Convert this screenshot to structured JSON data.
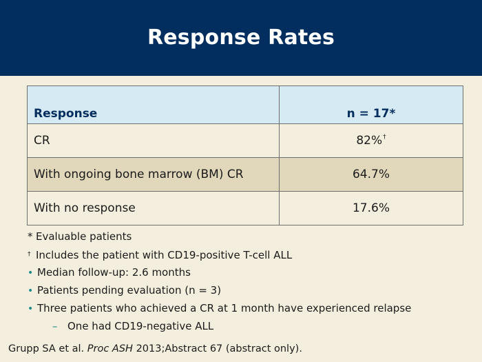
{
  "slide": {
    "title": "Response Rates"
  },
  "table": {
    "headers": {
      "response": "Response",
      "n": "n = 17*"
    },
    "rows": [
      {
        "label": "CR",
        "value": "82%",
        "value_sup": "†"
      },
      {
        "label": "With ongoing bone marrow (BM) CR",
        "value": "64.7%"
      },
      {
        "label": "With no response",
        "value": "17.6%"
      }
    ]
  },
  "footnotes": {
    "asterisk_symbol": "*",
    "asterisk_text": "Evaluable patients",
    "dagger_symbol": "†",
    "dagger_text": "Includes the patient with CD19-positive T-cell ALL"
  },
  "bullets": [
    "Median follow-up: 2.6 months",
    "Patients pending evaluation (n = 3)",
    "Three patients who achieved a CR at 1 month have experienced relapse"
  ],
  "sub_bullets": [
    "One had CD19-negative ALL"
  ],
  "citation": {
    "authors": "Grupp SA et al.",
    "journal": "Proc ASH",
    "rest": "2013;Abstract 67 (abstract only)."
  },
  "colors": {
    "title_bar": "#012d5f",
    "background": "#f3eedd",
    "header_row": "#d6eaf3",
    "highlight_row": "#e1d7bb",
    "bullet_accent": "#1f8a87"
  }
}
